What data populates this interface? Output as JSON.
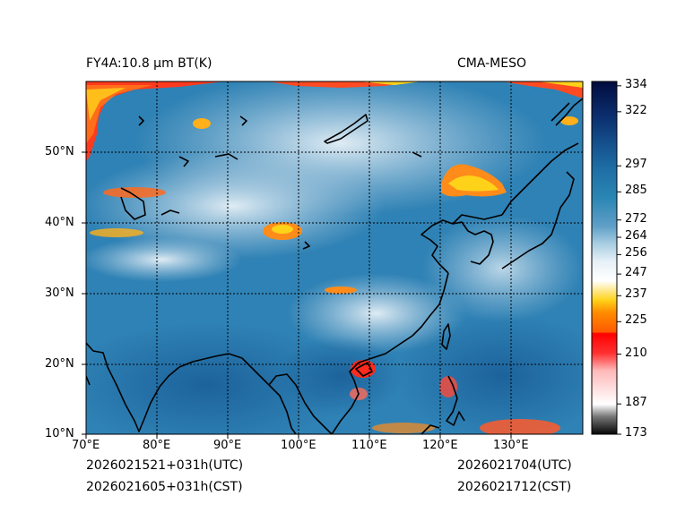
{
  "header": {
    "title": "FY4A:10.8 µm BT(K)",
    "model": "CMA-MESO"
  },
  "footer": {
    "init_utc": "2026021521+031h(UTC)",
    "init_cst": "2026021605+031h(CST)",
    "valid_utc": "2026021704(UTC)",
    "valid_cst": "2026021712(CST)"
  },
  "map": {
    "lon_range": [
      70,
      140
    ],
    "lat_range": [
      10,
      60
    ],
    "lon_ticks": [
      "70°E",
      "80°E",
      "90°E",
      "100°E",
      "110°E",
      "120°E",
      "130°E"
    ],
    "lat_ticks": [
      "10°N",
      "20°N",
      "30°N",
      "40°N",
      "50°N"
    ]
  },
  "colorbar": {
    "range": [
      173,
      336
    ],
    "tick_values": [
      173,
      187,
      210,
      225,
      237,
      247,
      256,
      264,
      272,
      285,
      297,
      322,
      334
    ],
    "tick_labels": [
      "173",
      "187",
      "210",
      "225",
      "237",
      "247",
      "256",
      "264",
      "272",
      "285",
      "297",
      "322",
      "334"
    ]
  },
  "colors": {
    "cold_tops": "#ffd21a",
    "deep_convection": "#ff2a1e",
    "ocean_clear": "#1e6fa5",
    "cloud": "#cfe3ee",
    "coastline": "#000000"
  }
}
